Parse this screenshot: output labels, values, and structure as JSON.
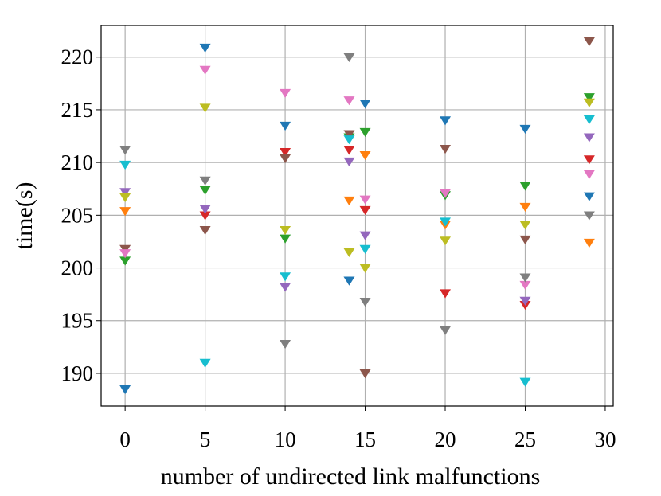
{
  "chart_data": {
    "type": "scatter",
    "marker": "triangle-down",
    "x_label": "number of undirected link malfunctions",
    "y_label": "time(s)",
    "x": [
      0,
      5,
      10,
      14,
      15,
      20,
      25,
      29
    ],
    "xlim": [
      -1.5,
      30.5
    ],
    "ylim": [
      186.9,
      223.0
    ],
    "xticks": [
      0,
      5,
      10,
      15,
      20,
      25,
      30
    ],
    "yticks": [
      190,
      195,
      200,
      205,
      210,
      215,
      220
    ],
    "grid": true,
    "series": [
      {
        "color": "#1f77b4",
        "values": [
          188.5,
          220.9,
          213.5,
          198.8,
          215.6,
          214.0,
          213.2,
          206.8
        ]
      },
      {
        "color": "#ff7f0e",
        "values": [
          205.4,
          null,
          null,
          206.4,
          210.7,
          204.1,
          205.8,
          202.4
        ]
      },
      {
        "color": "#2ca02c",
        "values": [
          200.7,
          207.4,
          202.8,
          212.4,
          212.9,
          206.9,
          207.8,
          216.2
        ]
      },
      {
        "color": "#d62728",
        "values": [
          null,
          205.0,
          211.0,
          211.2,
          205.5,
          197.6,
          196.5,
          210.3
        ]
      },
      {
        "color": "#9467bd",
        "values": [
          207.2,
          205.6,
          198.2,
          210.1,
          203.1,
          null,
          196.9,
          212.4
        ]
      },
      {
        "color": "#8c564b",
        "values": [
          201.8,
          203.6,
          210.4,
          212.7,
          190.0,
          211.3,
          202.7,
          221.5
        ]
      },
      {
        "color": "#e377c2",
        "values": [
          201.4,
          218.8,
          216.6,
          215.9,
          206.5,
          207.1,
          198.4,
          208.9
        ]
      },
      {
        "color": "#7f7f7f",
        "values": [
          211.2,
          208.3,
          192.8,
          220.0,
          196.8,
          194.1,
          199.1,
          205.0
        ]
      },
      {
        "color": "#bcbd22",
        "values": [
          206.7,
          215.2,
          203.6,
          201.5,
          200.0,
          202.6,
          204.1,
          215.7
        ]
      },
      {
        "color": "#17becf",
        "values": [
          209.8,
          191.0,
          199.2,
          212.2,
          201.8,
          204.4,
          189.2,
          214.1
        ]
      }
    ]
  }
}
